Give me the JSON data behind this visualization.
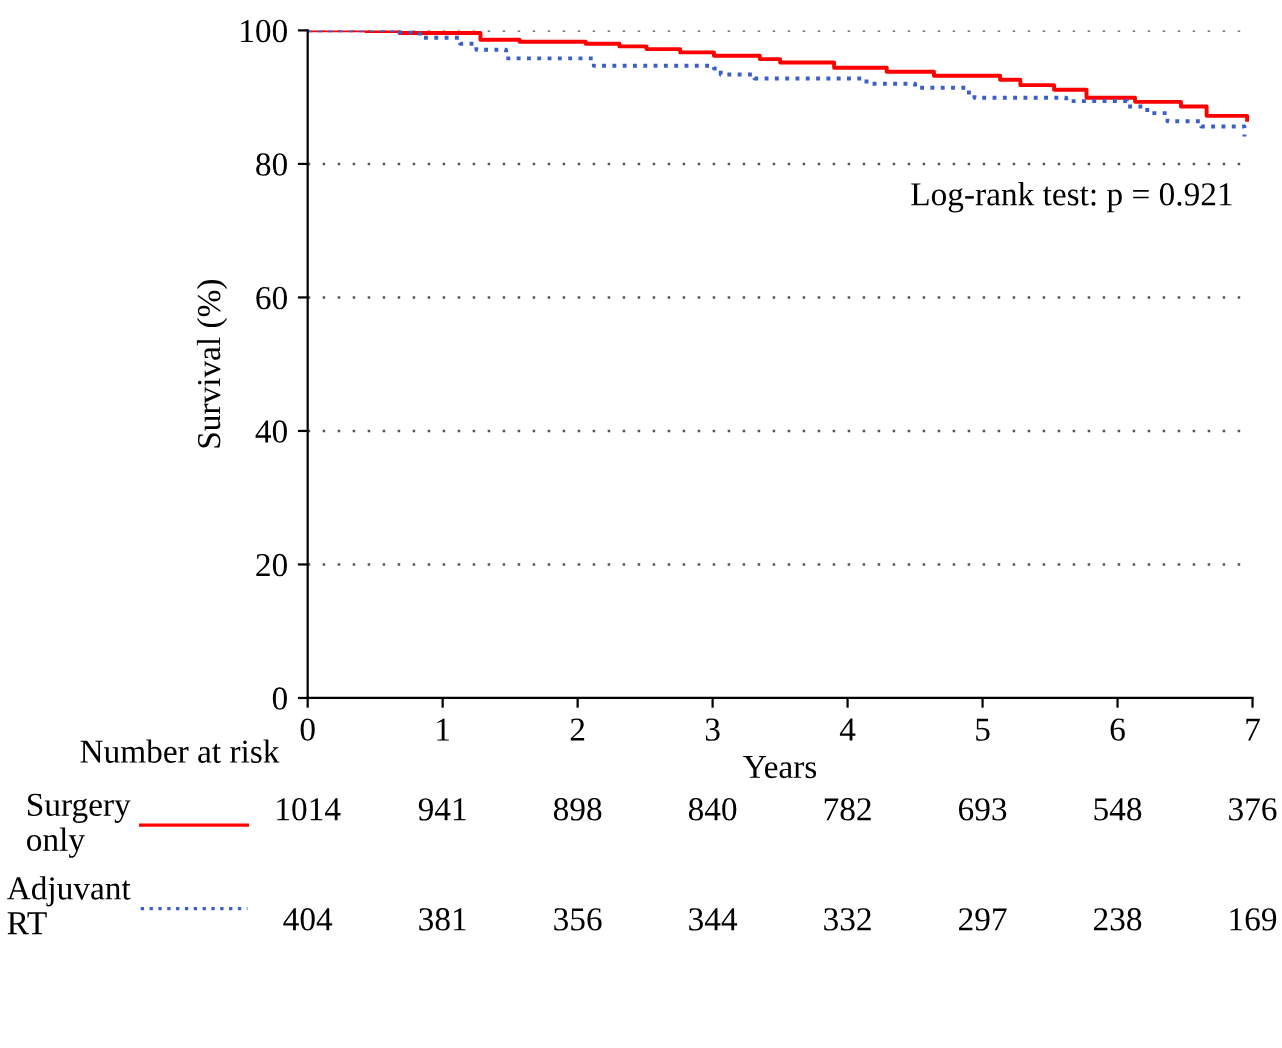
{
  "chart_data": {
    "type": "step",
    "xlabel": "Years",
    "ylabel": "Survival (%)",
    "xlim": [
      0,
      7
    ],
    "xticks": [
      0,
      1,
      2,
      3,
      4,
      5,
      6,
      7
    ],
    "ylim": [
      0,
      100
    ],
    "yticks": [
      0,
      20,
      40,
      60,
      80,
      100
    ],
    "grid": "y",
    "legend": "bottom",
    "series": [
      {
        "name": "Surgery only",
        "color": "#ff0000",
        "line_style": "solid",
        "x": [
          0,
          0.43,
          0.68,
          1.28,
          1.57,
          2.06,
          2.31,
          2.51,
          2.76,
          3.01,
          3.35,
          3.5,
          3.9,
          4.29,
          4.64,
          5.13,
          5.28,
          5.53,
          5.77,
          6.13,
          6.47,
          6.66,
          6.96
        ],
        "values": [
          100,
          99.9,
          99.6,
          98.6,
          98.3,
          98.0,
          97.6,
          97.2,
          96.7,
          96.2,
          95.7,
          95.2,
          94.4,
          93.8,
          93.2,
          92.6,
          91.8,
          91.1,
          89.9,
          89.3,
          88.6,
          87.2,
          86.6
        ]
      },
      {
        "name": "Adjuvant RT",
        "color": "#3a5fc8",
        "line_style": "dotted",
        "x": [
          0,
          0.68,
          0.83,
          1.13,
          1.25,
          1.47,
          2.06,
          2.12,
          3.01,
          3.06,
          3.31,
          4.14,
          4.5,
          4.88,
          4.94,
          5.62,
          6.07,
          6.22,
          6.37,
          6.62,
          6.94
        ],
        "values": [
          100,
          99.7,
          98.9,
          98.0,
          97.1,
          95.8,
          95.8,
          94.7,
          94.3,
          93.4,
          92.8,
          92.0,
          91.4,
          90.7,
          89.9,
          89.4,
          88.6,
          87.6,
          86.4,
          85.6,
          84.1
        ]
      }
    ],
    "annotations": [
      "Log-rank test: p = 0.921",
      "Number at risk",
      "1014",
      "941",
      "898",
      "840",
      "782",
      "693",
      "548",
      "376",
      "404",
      "381",
      "356",
      "344",
      "332",
      "297",
      "238",
      "169"
    ]
  }
}
